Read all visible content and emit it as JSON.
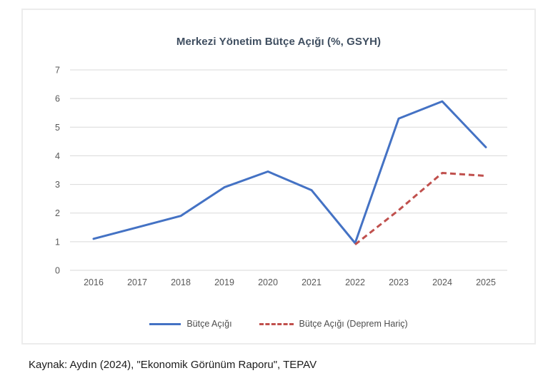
{
  "chart_data": {
    "type": "line",
    "title": "Merkezi Yönetim Bütçe Açığı (%, GSYH)",
    "x": [
      "2016",
      "2017",
      "2018",
      "2019",
      "2020",
      "2021",
      "2022",
      "2023",
      "2024",
      "2025"
    ],
    "series": [
      {
        "name": "Bütçe Açığı",
        "color": "#4472C4",
        "style": "solid",
        "values": [
          1.1,
          1.5,
          1.9,
          2.9,
          3.45,
          2.8,
          0.95,
          5.3,
          5.9,
          4.3
        ]
      },
      {
        "name": "Bütçe Açığı (Deprem Hariç)",
        "color": "#C0504D",
        "style": "dashed",
        "values": [
          null,
          null,
          null,
          null,
          null,
          null,
          0.9,
          2.1,
          3.4,
          3.3
        ]
      }
    ],
    "ylim": [
      0,
      7
    ],
    "yticks": [
      0,
      1,
      2,
      3,
      4,
      5,
      6,
      7
    ],
    "xlabel": "",
    "ylabel": "",
    "grid": true,
    "legend_position": "bottom"
  },
  "colors": {
    "gridline": "#D9D9D9",
    "tick_label": "#595959",
    "title": "#3f4e60",
    "legend_text": "#4d4d4d"
  },
  "source_note": "Kaynak: Aydın (2024), \"Ekonomik Görünüm Raporu\", TEPAV"
}
